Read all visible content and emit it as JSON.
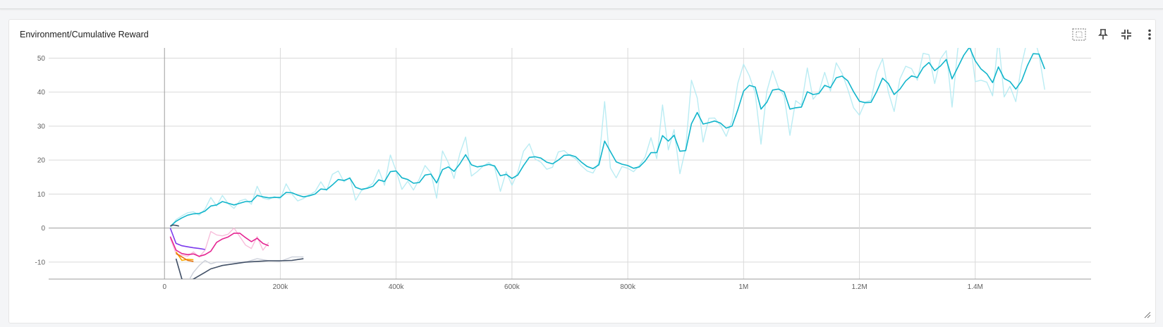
{
  "card": {
    "title": "Environment/Cumulative Reward",
    "toolbar": [
      {
        "icon": "fit-domain-icon",
        "label": "Fit domain to data"
      },
      {
        "icon": "pin-icon",
        "label": "Pin card"
      },
      {
        "icon": "collapse-icon",
        "label": "Exit full size"
      },
      {
        "icon": "more-vert-icon",
        "label": "More options"
      }
    ]
  },
  "colors": {
    "main": "#12b5cb",
    "main_raw": "#b3eaf2",
    "magenta": "#e52592",
    "magenta_raw": "#f7b8d7",
    "purple": "#7c3aed",
    "navy": "#425066",
    "navy_raw": "#c6cbd6",
    "orange": "#f9ab00",
    "orange_dark": "#e8710a",
    "grid": "#dadada",
    "axis": "#9e9e9e",
    "tick_text": "#616161"
  },
  "chart_data": {
    "type": "line",
    "title": "Environment/Cumulative Reward",
    "xlabel": "",
    "ylabel": "",
    "xlim": [
      -200000,
      1600000
    ],
    "ylim": [
      -15,
      53
    ],
    "x_ticks": [
      0,
      200000,
      400000,
      600000,
      800000,
      1000000,
      1200000,
      1400000
    ],
    "x_tick_labels": [
      "0",
      "200k",
      "400k",
      "600k",
      "800k",
      "1M",
      "1.2M",
      "1.4M"
    ],
    "y_ticks": [
      -10,
      0,
      10,
      20,
      30,
      40,
      50
    ],
    "y_tick_labels": [
      "-10",
      "0",
      "10",
      "20",
      "30",
      "40",
      "50"
    ],
    "grid": true,
    "series": [
      {
        "color_key": "main",
        "raw_color_key": "main_raw",
        "x": [
          10000,
          20000,
          30000,
          40000,
          50000,
          60000,
          70000,
          80000,
          90000,
          100000,
          110000,
          120000,
          130000,
          140000,
          150000,
          160000,
          170000,
          180000,
          190000,
          200000,
          210000,
          220000,
          230000,
          240000,
          250000,
          260000,
          270000,
          280000,
          290000,
          300000,
          310000,
          320000,
          330000,
          340000,
          350000,
          360000,
          370000,
          380000,
          390000,
          400000,
          410000,
          420000,
          430000,
          440000,
          450000,
          460000,
          470000,
          480000,
          490000,
          500000,
          510000,
          520000,
          530000,
          540000,
          550000,
          560000,
          570000,
          580000,
          590000,
          600000,
          610000,
          620000,
          630000,
          640000,
          650000,
          660000,
          670000,
          680000,
          690000,
          700000,
          710000,
          720000,
          730000,
          740000,
          750000,
          760000,
          770000,
          780000,
          790000,
          800000,
          810000,
          820000,
          830000,
          840000,
          850000,
          860000,
          870000,
          880000,
          890000,
          900000,
          910000,
          920000,
          930000,
          940000,
          950000,
          960000,
          970000,
          980000,
          990000,
          1000000,
          1010000,
          1020000,
          1030000,
          1040000,
          1050000,
          1060000,
          1070000,
          1080000,
          1090000,
          1100000,
          1110000,
          1120000,
          1130000,
          1140000,
          1150000,
          1160000,
          1170000,
          1180000,
          1190000,
          1200000,
          1210000,
          1220000,
          1230000,
          1240000,
          1250000,
          1260000,
          1270000,
          1280000,
          1290000,
          1300000,
          1310000,
          1320000,
          1330000,
          1340000,
          1350000,
          1360000,
          1370000,
          1380000,
          1390000,
          1400000,
          1410000,
          1420000,
          1430000,
          1440000,
          1450000,
          1460000,
          1470000,
          1480000,
          1490000,
          1500000,
          1510000,
          1520000
        ],
        "y": [
          0.5,
          2,
          3,
          3.8,
          4.2,
          4.3,
          5,
          6.5,
          6.8,
          7.8,
          7.3,
          6.8,
          7.3,
          7.8,
          7.8,
          9.6,
          9.2,
          8.9,
          9,
          9,
          10.5,
          10.4,
          9.7,
          9.2,
          9.5,
          10,
          11.5,
          11.3,
          12.7,
          14.3,
          14,
          14.7,
          12,
          11.4,
          11.7,
          12.3,
          14.2,
          13.7,
          16.6,
          16.8,
          14.8,
          14.3,
          13.2,
          13.4,
          15.6,
          15.9,
          13.3,
          17.2,
          18,
          16.7,
          18.9,
          21.6,
          18.6,
          18,
          18.3,
          18.7,
          18.3,
          15.4,
          15.8,
          14.6,
          15.6,
          18.4,
          20.8,
          21,
          20.6,
          19.4,
          18.9,
          20,
          21.4,
          21.5,
          21,
          19.4,
          18.1,
          17.5,
          18.6,
          25.6,
          22.5,
          19.5,
          18.8,
          18.4,
          17.6,
          18,
          19.7,
          22.2,
          22.2,
          27.2,
          25.6,
          27.3,
          22.6,
          22.8,
          30.7,
          34,
          30.6,
          31,
          31.5,
          30.9,
          29.4,
          30,
          34.8,
          40.3,
          42,
          41.5,
          35,
          37,
          40.6,
          40.9,
          40.1,
          35,
          35.4,
          35.6,
          40.1,
          39.3,
          39.6,
          42,
          41.3,
          44.2,
          44.7,
          43.3,
          40.1,
          37.3,
          36.9,
          37,
          40.2,
          44.1,
          42.5,
          39.3,
          40.9,
          43.3,
          44.8,
          44.3,
          47.2,
          48.7,
          46.3,
          47.7,
          49.6,
          43.9,
          47.3,
          50.8,
          53.2,
          49.2,
          46.8,
          45.4,
          42.8,
          47.4,
          44,
          43.1,
          40.9,
          43.3,
          47.8,
          51.3,
          51.2,
          46.8
        ],
        "raw_y": [
          0,
          2.5,
          3.6,
          4.5,
          4.8,
          3.8,
          5.6,
          9,
          6.5,
          9.6,
          7.2,
          5.8,
          8,
          8.5,
          7,
          12.3,
          8.8,
          8.4,
          9.3,
          8.6,
          13,
          10,
          8,
          8.7,
          9.8,
          10.7,
          13.6,
          11,
          15.8,
          16.8,
          13.6,
          14.9,
          8.2,
          11,
          11.9,
          13.2,
          17.2,
          12.6,
          21.5,
          16.8,
          11.4,
          13.8,
          11.2,
          14.4,
          18.4,
          16.3,
          8.8,
          22.7,
          19.3,
          14.6,
          21.9,
          26.8,
          15.3,
          16.6,
          18.2,
          19.3,
          17.9,
          10.8,
          16.6,
          12.6,
          16.4,
          22.6,
          24.8,
          20.3,
          19.4,
          17.3,
          17.9,
          22.4,
          22.8,
          21.3,
          20.4,
          18.3,
          16.8,
          16.2,
          19.3,
          37.2,
          17.7,
          14.8,
          18.1,
          17.6,
          16.6,
          18.4,
          20.9,
          26.6,
          20.4,
          36.2,
          23,
          29,
          16,
          23.4,
          43.5,
          38.3,
          25.3,
          32.3,
          32.4,
          30.2,
          27,
          31.6,
          42.6,
          48.2,
          44.8,
          39.7,
          24.7,
          40.2,
          46.3,
          41.4,
          38.9,
          27.3,
          37.5,
          36.2,
          47.1,
          37.9,
          40,
          45.8,
          40.3,
          48.6,
          45.6,
          40.8,
          35.4,
          33.2,
          37.1,
          37.6,
          45.9,
          49.8,
          40,
          34.3,
          43.9,
          47.6,
          46.9,
          43.5,
          51.4,
          51,
          42.5,
          49.8,
          52.2,
          35.6,
          52.8,
          56,
          56.4,
          43.1,
          43.5,
          42.9,
          38.9,
          55.8,
          38.6,
          41.7,
          37.2,
          48,
          55.5,
          57.1,
          51.1,
          40.7
        ]
      },
      {
        "color_key": "magenta",
        "raw_color_key": "magenta_raw",
        "x": [
          10000,
          20000,
          30000,
          40000,
          50000,
          60000,
          70000,
          80000,
          90000,
          100000,
          110000,
          120000,
          130000,
          140000,
          150000,
          160000,
          170000,
          180000
        ],
        "y": [
          -2.5,
          -6.5,
          -7.5,
          -7.8,
          -7.6,
          -8.3,
          -7.8,
          -6.8,
          -4.2,
          -3.2,
          -2.6,
          -1.5,
          -1.5,
          -2.8,
          -4,
          -3,
          -4.5,
          -5.2
        ],
        "raw_y": [
          -3,
          -7.5,
          -8,
          -8.3,
          -7,
          -8.5,
          -6.5,
          -1,
          -2,
          -2.3,
          -1.8,
          0,
          -2.5,
          -5,
          -6,
          -2.5,
          -6.5,
          -4.2
        ]
      },
      {
        "color_key": "purple",
        "raw_color_key": "purple",
        "x": [
          10000,
          20000,
          30000,
          40000,
          50000,
          60000,
          70000
        ],
        "y": [
          0,
          -4.5,
          -5.2,
          -5.5,
          -5.8,
          -6,
          -6.3
        ],
        "raw_y": [
          0,
          -4.5,
          -5.2,
          -5.5,
          -5.8,
          -6,
          -6.3
        ]
      },
      {
        "color_key": "navy",
        "raw_color_key": "navy_raw",
        "x": [
          20000,
          30000,
          40000,
          50000,
          60000,
          70000,
          80000,
          90000,
          100000,
          120000,
          140000,
          160000,
          180000,
          200000,
          220000,
          240000
        ],
        "y": [
          -9,
          -15,
          -16,
          -15,
          -14,
          -13,
          -12,
          -11.5,
          -11,
          -10.5,
          -10,
          -9.8,
          -9.6,
          -9.6,
          -9.5,
          -9
        ],
        "raw_y": [
          -9,
          -15,
          -16,
          -13,
          -11,
          -9.5,
          -10.5,
          -10,
          -10,
          -10,
          -10,
          -9,
          -9.6,
          -9.8,
          -8.5,
          -8.5
        ]
      },
      {
        "color_key": "orange",
        "raw_color_key": "orange",
        "x": [
          20000,
          30000,
          40000,
          50000
        ],
        "y": [
          -7,
          -9.5,
          -9.2,
          -9.3
        ],
        "raw_y": [
          -7,
          -9.5,
          -9.2,
          -9.3
        ]
      },
      {
        "color_key": "orange_dark",
        "raw_color_key": "orange_dark",
        "x": [
          20000,
          30000,
          40000,
          50000
        ],
        "y": [
          -7.5,
          -8.5,
          -9.5,
          -9.8
        ],
        "raw_y": [
          -7.5,
          -8.5,
          -9.5,
          -9.8
        ]
      },
      {
        "color_key": "navy",
        "raw_color_key": "navy",
        "x": [
          10000,
          15000,
          20000,
          25000
        ],
        "y": [
          0.6,
          0.9,
          0.8,
          0.6
        ],
        "raw_y": [
          0.6,
          0.9,
          0.8,
          0.6
        ]
      }
    ]
  }
}
